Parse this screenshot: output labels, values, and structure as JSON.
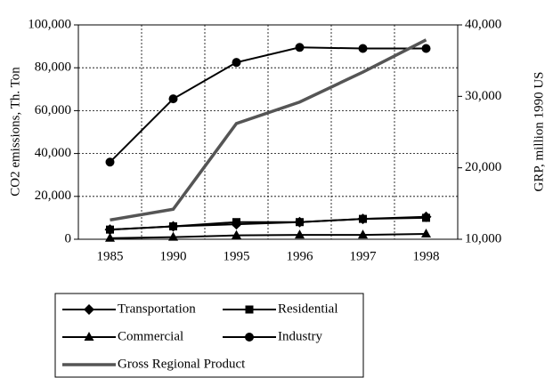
{
  "chart_data": {
    "type": "line",
    "categories": [
      "1985",
      "1990",
      "1995",
      "1996",
      "1997",
      "1998"
    ],
    "ylabel": "CO2 emissions, Th. Ton",
    "y2label": "GRP, million 1990 US",
    "ylim": [
      0,
      100000
    ],
    "yticks": [
      0,
      {
        "value": 20000,
        "label": "20,000"
      },
      {
        "value": 40000,
        "label": "40,000"
      },
      {
        "value": 60000,
        "label": "60,000"
      },
      {
        "value": 80000,
        "label": "80,000"
      },
      {
        "value": 100000,
        "label": "100,000"
      }
    ],
    "y2lim": [
      10000,
      40000
    ],
    "y2ticks": [
      {
        "value": 10000,
        "label": "10,000"
      },
      {
        "value": 20000,
        "label": "20,000"
      },
      {
        "value": 30000,
        "label": "30,000"
      },
      {
        "value": 40000,
        "label": "40,000"
      }
    ],
    "grid": true,
    "series": [
      {
        "name": "Transportation",
        "color": "#000000",
        "marker": "diamond",
        "values": [
          4500,
          6000,
          7000,
          8000,
          9500,
          10500
        ]
      },
      {
        "name": "Residential",
        "color": "#000000",
        "marker": "square",
        "values": [
          4500,
          6000,
          8000,
          8000,
          9500,
          10000
        ]
      },
      {
        "name": "Commercial",
        "color": "#000000",
        "marker": "triangle",
        "values": [
          500,
          1000,
          1800,
          2000,
          2000,
          2500
        ]
      },
      {
        "name": "Industry",
        "color": "#000000",
        "marker": "circle",
        "values": [
          36000,
          65500,
          82500,
          89500,
          89000,
          89000
        ]
      },
      {
        "name": "Gross Regional Product",
        "color": "#555555",
        "axis": "y2",
        "values": [
          12700,
          14200,
          26200,
          29200,
          33400,
          37900
        ]
      }
    ]
  }
}
